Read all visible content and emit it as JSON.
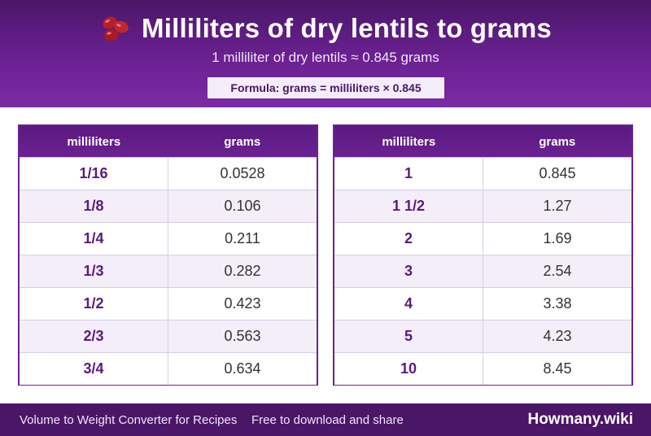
{
  "header": {
    "title": "Milliliters of dry lentils to grams",
    "subtitle": "1 milliliter of dry lentils ≈ 0.845 grams",
    "formula": "Formula: grams = milliliters × 0.845",
    "icon": "lentil-beans-icon"
  },
  "columns": {
    "ml": "milliliters",
    "g": "grams"
  },
  "left_table": [
    {
      "ml": "1/16",
      "g": "0.0528"
    },
    {
      "ml": "1/8",
      "g": "0.106"
    },
    {
      "ml": "1/4",
      "g": "0.211"
    },
    {
      "ml": "1/3",
      "g": "0.282"
    },
    {
      "ml": "1/2",
      "g": "0.423"
    },
    {
      "ml": "2/3",
      "g": "0.563"
    },
    {
      "ml": "3/4",
      "g": "0.634"
    }
  ],
  "right_table": [
    {
      "ml": "1",
      "g": "0.845"
    },
    {
      "ml": "1 1/2",
      "g": "1.27"
    },
    {
      "ml": "2",
      "g": "1.69"
    },
    {
      "ml": "3",
      "g": "2.54"
    },
    {
      "ml": "4",
      "g": "3.38"
    },
    {
      "ml": "5",
      "g": "4.23"
    },
    {
      "ml": "10",
      "g": "8.45"
    }
  ],
  "footer": {
    "left_text": "Volume to Weight Converter for Recipes",
    "middle_text": "Free to download and share",
    "brand": "Howmany.wiki"
  },
  "colors": {
    "primary": "#6b2192",
    "dark": "#4a1668",
    "stripe": "#f3eef8"
  }
}
